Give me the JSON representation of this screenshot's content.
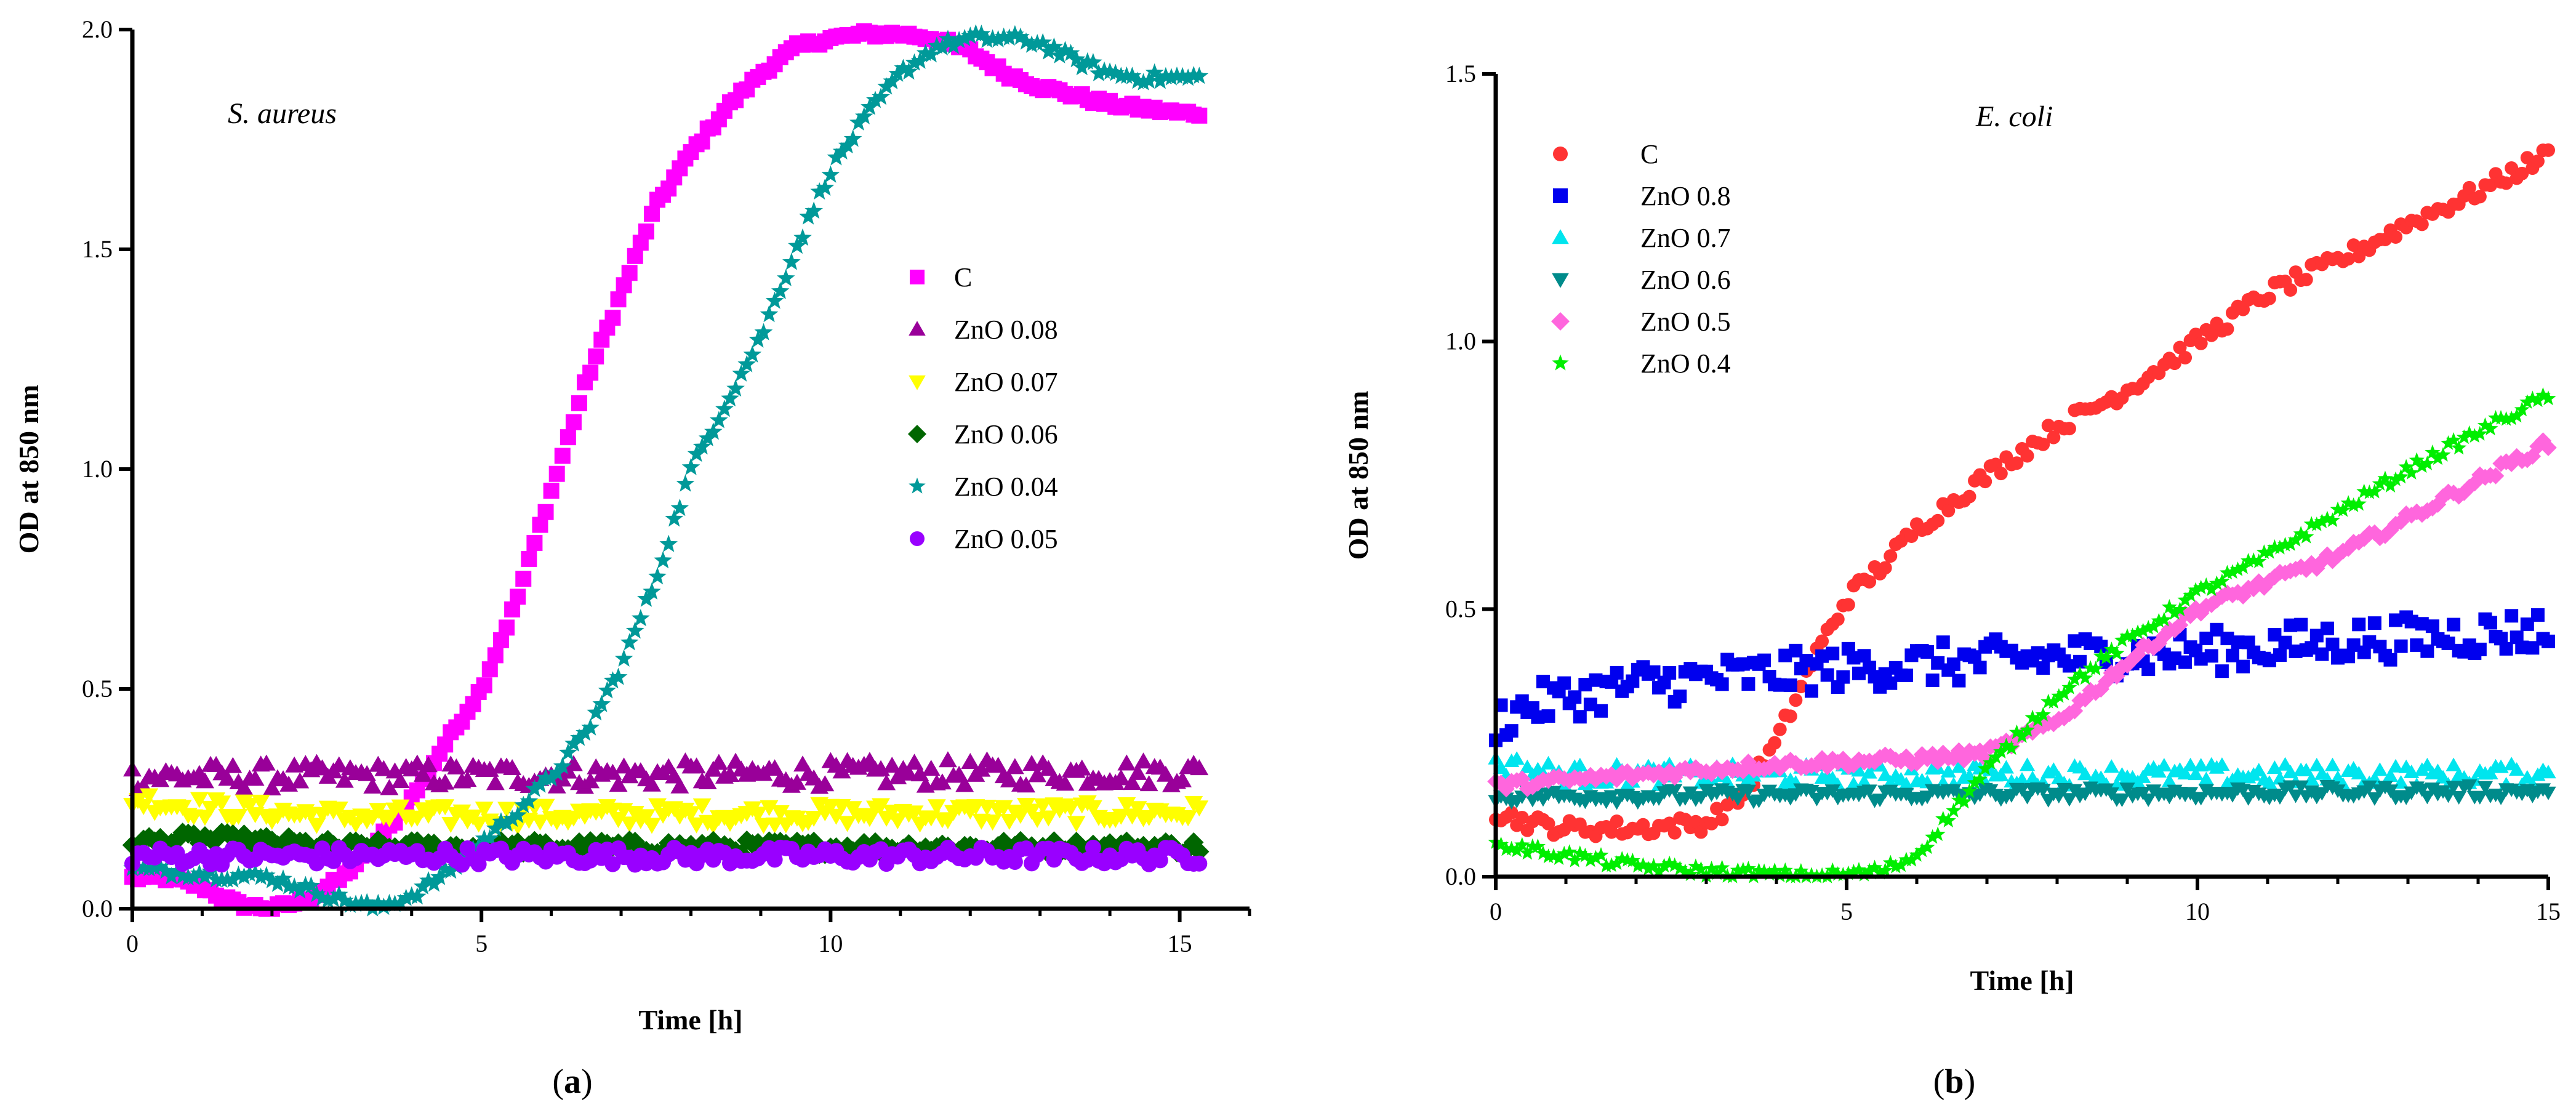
{
  "chart_data": [
    {
      "type": "scatter",
      "panel_label": "a",
      "organism": "S. aureus",
      "xlabel": "Time [h]",
      "ylabel": "OD at 850 nm",
      "xlim": [
        0,
        16
      ],
      "ylim": [
        0,
        2.0
      ],
      "xticks": [
        0,
        5,
        10,
        15
      ],
      "yticks": [
        0.0,
        0.5,
        1.0,
        1.5,
        2.0
      ],
      "xtick_labels": [
        "0",
        "5",
        "10",
        "15"
      ],
      "ytick_labels": [
        "0.0",
        "0.5",
        "1.0",
        "1.5",
        "2.0"
      ],
      "legend_position": "center-right",
      "series": [
        {
          "name": "C",
          "marker": "square",
          "color": "#ff00ff",
          "points": [
            [
              0,
              0.07
            ],
            [
              0.5,
              0.07
            ],
            [
              1,
              0.05
            ],
            [
              1.5,
              0.01
            ],
            [
              2,
              0.0
            ],
            [
              2.5,
              0.02
            ],
            [
              3,
              0.07
            ],
            [
              3.5,
              0.15
            ],
            [
              4,
              0.25
            ],
            [
              4.5,
              0.38
            ],
            [
              5,
              0.5
            ],
            [
              5.5,
              0.7
            ],
            [
              6,
              0.95
            ],
            [
              6.5,
              1.2
            ],
            [
              7,
              1.4
            ],
            [
              7.5,
              1.6
            ],
            [
              8,
              1.72
            ],
            [
              8.5,
              1.82
            ],
            [
              9,
              1.9
            ],
            [
              9.5,
              1.96
            ],
            [
              10,
              1.98
            ],
            [
              10.5,
              1.99
            ],
            [
              11,
              1.99
            ],
            [
              11.5,
              1.98
            ],
            [
              12,
              1.95
            ],
            [
              12.5,
              1.9
            ],
            [
              13,
              1.87
            ],
            [
              13.5,
              1.85
            ],
            [
              14,
              1.83
            ],
            [
              14.5,
              1.82
            ],
            [
              15,
              1.81
            ],
            [
              15.3,
              1.81
            ]
          ],
          "noise": 0.004
        },
        {
          "name": "ZnO 0.08",
          "marker": "triangle",
          "color": "#990099",
          "points": [
            [
              0,
              0.3
            ],
            [
              15.3,
              0.31
            ]
          ],
          "noise": 0.015
        },
        {
          "name": "ZnO 0.07",
          "marker": "triangle-down",
          "color": "#ffff00",
          "points": [
            [
              0,
              0.25
            ],
            [
              1,
              0.23
            ],
            [
              3,
              0.21
            ],
            [
              15.3,
              0.22
            ]
          ],
          "noise": 0.012
        },
        {
          "name": "ZnO 0.06",
          "marker": "diamond",
          "color": "#006600",
          "points": [
            [
              0,
              0.15
            ],
            [
              1,
              0.16
            ],
            [
              3,
              0.14
            ],
            [
              15.3,
              0.14
            ]
          ],
          "noise": 0.008
        },
        {
          "name": "ZnO 0.04",
          "marker": "star",
          "color": "#009999",
          "points": [
            [
              0,
              0.09
            ],
            [
              1,
              0.08
            ],
            [
              2,
              0.07
            ],
            [
              3,
              0.02
            ],
            [
              3.5,
              0.0
            ],
            [
              4,
              0.03
            ],
            [
              4.5,
              0.08
            ],
            [
              5,
              0.15
            ],
            [
              5.5,
              0.22
            ],
            [
              6,
              0.3
            ],
            [
              6.5,
              0.4
            ],
            [
              7,
              0.55
            ],
            [
              7.5,
              0.75
            ],
            [
              8,
              1.0
            ],
            [
              8.5,
              1.15
            ],
            [
              9,
              1.3
            ],
            [
              9.5,
              1.5
            ],
            [
              10,
              1.68
            ],
            [
              10.5,
              1.8
            ],
            [
              11,
              1.9
            ],
            [
              11.5,
              1.96
            ],
            [
              12,
              1.98
            ],
            [
              12.5,
              1.98
            ],
            [
              13,
              1.97
            ],
            [
              13.5,
              1.93
            ],
            [
              14,
              1.9
            ],
            [
              14.5,
              1.89
            ],
            [
              15,
              1.89
            ],
            [
              15.3,
              1.89
            ]
          ],
          "noise": 0.006
        },
        {
          "name": "ZnO 0.05",
          "marker": "circle",
          "color": "#9900ff",
          "points": [
            [
              0,
              0.12
            ],
            [
              15.3,
              0.12
            ]
          ],
          "noise": 0.01
        }
      ]
    },
    {
      "type": "scatter",
      "panel_label": "b",
      "organism": "E. coli",
      "xlabel": "Time [h]",
      "ylabel": "OD at 850 nm",
      "xlim": [
        0,
        15
      ],
      "ylim": [
        0,
        1.5
      ],
      "xticks": [
        0,
        5,
        10,
        15
      ],
      "yticks": [
        0.0,
        0.5,
        1.0,
        1.5
      ],
      "xtick_labels": [
        "0",
        "5",
        "10",
        "15"
      ],
      "ytick_labels": [
        "0.0",
        "0.5",
        "1.0",
        "1.5"
      ],
      "legend_position": "top-left",
      "series": [
        {
          "name": "C",
          "marker": "circle",
          "color": "#ff3333",
          "points": [
            [
              0,
              0.12
            ],
            [
              0.5,
              0.1
            ],
            [
              1,
              0.09
            ],
            [
              2,
              0.09
            ],
            [
              3,
              0.1
            ],
            [
              3.5,
              0.15
            ],
            [
              4,
              0.25
            ],
            [
              4.5,
              0.4
            ],
            [
              5,
              0.52
            ],
            [
              5.5,
              0.58
            ],
            [
              6,
              0.65
            ],
            [
              7,
              0.75
            ],
            [
              8,
              0.84
            ],
            [
              9,
              0.91
            ],
            [
              10,
              1.0
            ],
            [
              11,
              1.09
            ],
            [
              12,
              1.15
            ],
            [
              13,
              1.22
            ],
            [
              14,
              1.28
            ],
            [
              15,
              1.35
            ]
          ],
          "noise": 0.008
        },
        {
          "name": "ZnO 0.8",
          "marker": "square",
          "color": "#0000ee",
          "points": [
            [
              0,
              0.29
            ],
            [
              0.5,
              0.32
            ],
            [
              2,
              0.36
            ],
            [
              5,
              0.39
            ],
            [
              8,
              0.41
            ],
            [
              10,
              0.42
            ],
            [
              12,
              0.44
            ],
            [
              15,
              0.46
            ]
          ],
          "noise": 0.02
        },
        {
          "name": "ZnO 0.7",
          "marker": "triangle",
          "color": "#00e5ee",
          "points": [
            [
              0,
              0.21
            ],
            [
              1,
              0.19
            ],
            [
              15,
              0.19
            ]
          ],
          "noise": 0.01
        },
        {
          "name": "ZnO 0.6",
          "marker": "triangle-down",
          "color": "#008b8b",
          "points": [
            [
              0,
              0.15
            ],
            [
              15,
              0.16
            ]
          ],
          "noise": 0.006
        },
        {
          "name": "ZnO 0.5",
          "marker": "diamond",
          "color": "#ff66dd",
          "points": [
            [
              0,
              0.17
            ],
            [
              2,
              0.19
            ],
            [
              4,
              0.21
            ],
            [
              6,
              0.22
            ],
            [
              7,
              0.23
            ],
            [
              8,
              0.29
            ],
            [
              9,
              0.4
            ],
            [
              10,
              0.5
            ],
            [
              11,
              0.55
            ],
            [
              12,
              0.6
            ],
            [
              13,
              0.67
            ],
            [
              14,
              0.74
            ],
            [
              15,
              0.81
            ]
          ],
          "noise": 0.005
        },
        {
          "name": "ZnO 0.4",
          "marker": "star",
          "color": "#00ee00",
          "points": [
            [
              0,
              0.06
            ],
            [
              1,
              0.04
            ],
            [
              2,
              0.02
            ],
            [
              3,
              0.01
            ],
            [
              4.5,
              0.0
            ],
            [
              5.5,
              0.01
            ],
            [
              6,
              0.04
            ],
            [
              6.5,
              0.12
            ],
            [
              7,
              0.2
            ],
            [
              8,
              0.34
            ],
            [
              9,
              0.44
            ],
            [
              10,
              0.53
            ],
            [
              11,
              0.6
            ],
            [
              12,
              0.68
            ],
            [
              13,
              0.76
            ],
            [
              14,
              0.83
            ],
            [
              15,
              0.9
            ]
          ],
          "noise": 0.005
        }
      ]
    }
  ]
}
